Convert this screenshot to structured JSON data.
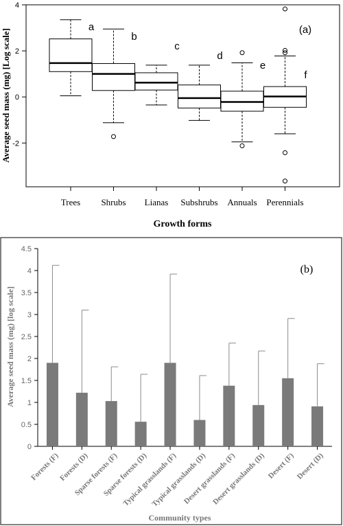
{
  "chart_data": [
    {
      "type": "box",
      "panel_label": "(a)",
      "xlabel": "Growth forms",
      "ylabel": "Average seed mass (mg) [Log scale]",
      "ylim": [
        -3.9,
        4.0
      ],
      "yticks": [
        -2,
        0,
        2,
        4
      ],
      "grid": false,
      "categories": [
        "Trees",
        "Shrubs",
        "Lianas",
        "Subshrubs",
        "Annuals",
        "Perennials"
      ],
      "letters": [
        "a",
        "b",
        "c",
        "d",
        "e",
        "f"
      ],
      "boxes": [
        {
          "whisker_low": 0.05,
          "q1": 1.1,
          "median": 1.47,
          "q3": 2.52,
          "whisker_high": 3.35,
          "outliers": []
        },
        {
          "whisker_low": -1.12,
          "q1": 0.28,
          "median": 1.0,
          "q3": 1.45,
          "whisker_high": 2.95,
          "outliers": [
            -1.72
          ]
        },
        {
          "whisker_low": -0.35,
          "q1": 0.3,
          "median": 0.62,
          "q3": 1.05,
          "whisker_high": 1.38,
          "outliers": []
        },
        {
          "whisker_low": -1.02,
          "q1": -0.48,
          "median": -0.05,
          "q3": 0.52,
          "whisker_high": 1.38,
          "outliers": []
        },
        {
          "whisker_low": -1.95,
          "q1": -0.62,
          "median": -0.22,
          "q3": 0.25,
          "whisker_high": 1.48,
          "outliers": [
            -2.12,
            1.92
          ]
        },
        {
          "whisker_low": -1.6,
          "q1": -0.45,
          "median": 0.02,
          "q3": 0.45,
          "whisker_high": 1.78,
          "outliers": [
            -3.65,
            -2.42,
            1.92,
            2.02,
            3.82
          ]
        }
      ]
    },
    {
      "type": "bar",
      "panel_label": "(b)",
      "xlabel": "Community types",
      "ylabel": "Average seed mass (mg) [log scale]",
      "ylim": [
        0,
        4.5
      ],
      "yticks": [
        "0",
        "0.5",
        "1",
        "1.5",
        "2",
        "2.5",
        "3",
        "3.5",
        "4",
        "4.5"
      ],
      "grid": false,
      "bar_color": "#7a7a7a",
      "categories": [
        "Forests (F)",
        "Forests (D)",
        "Sparse forests (F)",
        "Sparse forests (D)",
        "Typical grasslands (F)",
        "Typical grasslands (D)",
        "Desert grasslands (F)",
        "Desert grasslands (D)",
        "Desert (F)",
        "Desert (D)"
      ],
      "values": [
        1.9,
        1.22,
        1.03,
        0.56,
        1.9,
        0.6,
        1.38,
        0.94,
        1.55,
        0.91
      ],
      "error_upper": [
        4.12,
        3.1,
        1.81,
        1.64,
        3.92,
        1.61,
        2.35,
        2.17,
        2.91,
        1.88
      ]
    }
  ]
}
